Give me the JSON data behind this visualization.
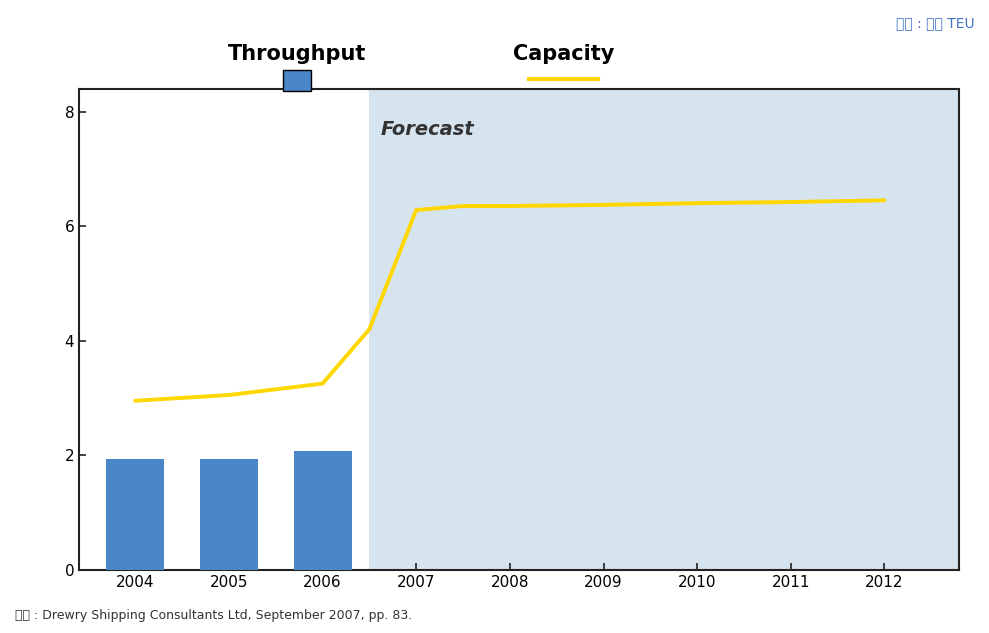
{
  "title_unit": "단위 : 백만 TEU",
  "source_text": "자료 : Drewry Shipping Consultants Ltd, September 2007, pp. 83.",
  "legend_labels": [
    "Throughput",
    "Capacity"
  ],
  "bar_years": [
    2004,
    2005,
    2006
  ],
  "bar_values": [
    1.93,
    1.93,
    2.07
  ],
  "bar_color": "#4A86C8",
  "line_x": [
    2004,
    2005,
    2006,
    2006.5,
    2007,
    2007.5,
    2008,
    2009,
    2010,
    2011,
    2012
  ],
  "line_y": [
    2.95,
    3.05,
    3.25,
    4.2,
    6.28,
    6.35,
    6.35,
    6.37,
    6.4,
    6.42,
    6.45
  ],
  "line_color": "#FFD700",
  "line_width": 2.8,
  "forecast_start_x": 2006.5,
  "forecast_color": "#D6E4F0",
  "forecast_label": "Forecast",
  "xlim": [
    2003.4,
    2012.8
  ],
  "ylim": [
    0,
    8.4
  ],
  "yticks": [
    0,
    2,
    4,
    6,
    8
  ],
  "xticks": [
    2004,
    2005,
    2006,
    2007,
    2008,
    2009,
    2010,
    2011,
    2012
  ],
  "bar_width": 0.62,
  "source_fontsize": 9,
  "unit_fontsize": 10,
  "tick_fontsize": 11,
  "legend_fontsize": 15,
  "forecast_fontsize": 14,
  "unit_color": "#4472C4",
  "spine_color": "#222222"
}
